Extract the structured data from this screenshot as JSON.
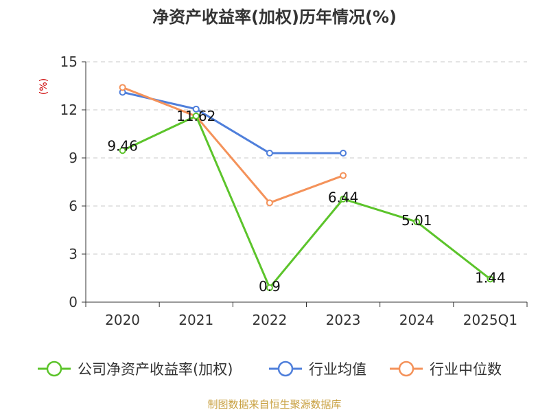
{
  "chart_data": {
    "type": "line",
    "title": "净资产收益率(加权)历年情况(%)",
    "ylabel": "(%)",
    "categories": [
      "2020",
      "2021",
      "2022",
      "2023",
      "2024",
      "2025Q1"
    ],
    "yticks": [
      "0",
      "3",
      "6",
      "9",
      "12",
      "15"
    ],
    "ylim": [
      0,
      15
    ],
    "grid": true,
    "legend_position": "bottom",
    "series": [
      {
        "name": "公司净资产收益率(加权)",
        "color": "#5cc42b",
        "values": [
          9.46,
          11.62,
          0.9,
          6.44,
          5.01,
          1.44
        ],
        "labels": [
          "9.46",
          "11.62",
          "0.9",
          "6.44",
          "5.01",
          "1.44"
        ]
      },
      {
        "name": "行业均值",
        "color": "#4f7fdb",
        "values": [
          13.1,
          12.05,
          9.3,
          9.3,
          null,
          null
        ]
      },
      {
        "name": "行业中位数",
        "color": "#f4925a",
        "values": [
          13.4,
          11.6,
          6.2,
          7.9,
          null,
          null
        ]
      }
    ]
  },
  "source": "制图数据来自恒生聚源数据库"
}
